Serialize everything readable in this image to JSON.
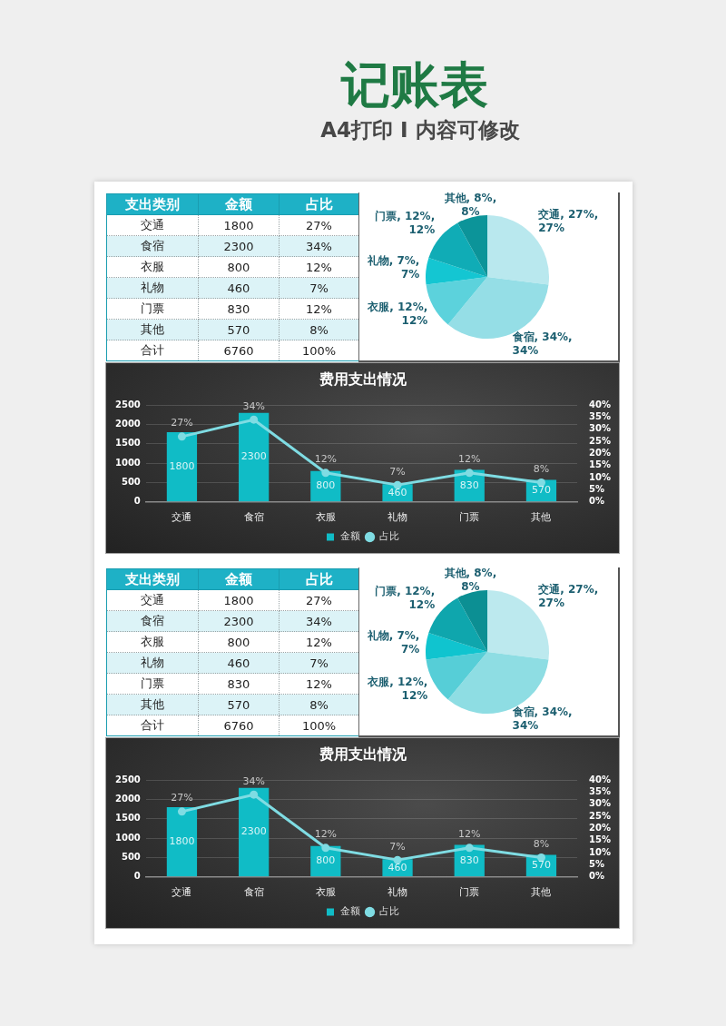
{
  "chart_data": [
    {
      "type": "other",
      "title": "记账表",
      "subtitle": "A4打印 I 内容可修改",
      "xlabel": "支出类别",
      "categories": [
        "交通",
        "食宿",
        "衣服",
        "礼物",
        "门票",
        "其他",
        "合计"
      ],
      "series": [
        {
          "name": "金额",
          "values": [
            1800,
            2300,
            800,
            460,
            830,
            570,
            6760
          ],
          "value_labels": [
            "1800",
            "2300",
            "800",
            "460",
            "830",
            "570",
            "6760"
          ],
          "colors": [
            "#ffffff",
            "#dcf3f7",
            "#ffffff",
            "#dcf3f7",
            "#ffffff",
            "#dcf3f7",
            "#ffffff"
          ]
        },
        {
          "name": "占比",
          "values": [
            27,
            34,
            12,
            7,
            12,
            8,
            100
          ],
          "value_labels": [
            "27%",
            "34%",
            "12%",
            "7%",
            "12%",
            "8%",
            "100%"
          ],
          "colors": [
            "#ffffff",
            "#dcf3f7",
            "#ffffff",
            "#dcf3f7",
            "#ffffff",
            "#dcf3f7",
            "#ffffff"
          ]
        }
      ]
    },
    {
      "type": "pie",
      "categories": [
        "交通",
        "食宿",
        "衣服",
        "礼物",
        "门票",
        "其他"
      ],
      "values": [
        27,
        34,
        12,
        7,
        12,
        8
      ],
      "colors": [
        "#b9e8ee",
        "#95dee6",
        "#5cd2dc",
        "#14c6d2",
        "#10acb6",
        "#0c9499"
      ],
      "value_labels": [
        "27%, 27%",
        "34%, 34%",
        "12%, 12%",
        "7%, 7%",
        "12%, 12%",
        "8%, 8%"
      ]
    },
    {
      "type": "bar",
      "title": "费用支出情况",
      "categories": [
        "交通",
        "食宿",
        "衣服",
        "礼物",
        "门票",
        "其他"
      ],
      "series": [
        {
          "name": "金额",
          "type": "bar",
          "color": "#10bcc6",
          "values": [
            1800,
            2300,
            800,
            460,
            830,
            570
          ],
          "value_labels": [
            "1800",
            "2300",
            "800",
            "460",
            "830",
            "570"
          ]
        },
        {
          "name": "占比",
          "type": "line",
          "axis": "y2",
          "color": "#7fdce3",
          "values": [
            27,
            34,
            12,
            7,
            12,
            8
          ],
          "value_labels": [
            "27%",
            "34%",
            "12%",
            "7%",
            "12%",
            "8%"
          ]
        }
      ],
      "ylim": [
        0,
        2500
      ],
      "yticks": [
        0,
        500,
        1000,
        1500,
        2000,
        2500
      ],
      "y2lim": [
        0,
        40
      ],
      "y2ticks": [
        {
          "value": 0,
          "label": "0%"
        },
        {
          "value": 5,
          "label": "5%"
        },
        {
          "value": 10,
          "label": "10%"
        },
        {
          "value": 15,
          "label": "15%"
        },
        {
          "value": 20,
          "label": "20%"
        },
        {
          "value": 25,
          "label": "25%"
        },
        {
          "value": 30,
          "label": "30%"
        },
        {
          "value": 35,
          "label": "35%"
        },
        {
          "value": 40,
          "label": "40%"
        }
      ],
      "grid": "y",
      "legend": "bottom",
      "marker": "circle"
    },
    {
      "type": "other",
      "xlabel": "支出类别",
      "categories": [
        "交通",
        "食宿",
        "衣服",
        "礼物",
        "门票",
        "其他",
        "合计"
      ],
      "series": [
        {
          "name": "金额",
          "values": [
            1800,
            2300,
            800,
            460,
            830,
            570,
            6760
          ],
          "value_labels": [
            "1800",
            "2300",
            "800",
            "460",
            "830",
            "570",
            "6760"
          ],
          "colors": [
            "#ffffff",
            "#dcf3f7",
            "#ffffff",
            "#dcf3f7",
            "#ffffff",
            "#dcf3f7",
            "#ffffff"
          ]
        },
        {
          "name": "占比",
          "values": [
            27,
            34,
            12,
            7,
            12,
            8,
            100
          ],
          "value_labels": [
            "27%",
            "34%",
            "12%",
            "7%",
            "12%",
            "8%",
            "100%"
          ],
          "colors": [
            "#ffffff",
            "#dcf3f7",
            "#ffffff",
            "#dcf3f7",
            "#ffffff",
            "#dcf3f7",
            "#ffffff"
          ]
        }
      ]
    },
    {
      "type": "pie",
      "categories": [
        "交通",
        "食宿",
        "衣服",
        "礼物",
        "门票",
        "其他"
      ],
      "values": [
        27,
        34,
        12,
        7,
        12,
        8
      ],
      "colors": [
        "#bce9ee",
        "#8edde3",
        "#56ced7",
        "#10c4cf",
        "#0fa6ad",
        "#0c8f93"
      ],
      "value_labels": [
        "27%, 27%",
        "34%, 34%",
        "12%, 12%",
        "7%, 7%",
        "12%, 12%",
        "8%, 8%"
      ]
    },
    {
      "type": "bar",
      "title": "费用支出情况",
      "categories": [
        "交通",
        "食宿",
        "衣服",
        "礼物",
        "门票",
        "其他"
      ],
      "series": [
        {
          "name": "金额",
          "type": "bar",
          "color": "#10bcc6",
          "values": [
            1800,
            2300,
            800,
            460,
            830,
            570
          ],
          "value_labels": [
            "1800",
            "2300",
            "800",
            "460",
            "830",
            "570"
          ]
        },
        {
          "name": "占比",
          "type": "line",
          "axis": "y2",
          "color": "#7fdce3",
          "values": [
            27,
            34,
            12,
            7,
            12,
            8
          ],
          "value_labels": [
            "27%",
            "34%",
            "12%",
            "7%",
            "12%",
            "8%"
          ]
        }
      ],
      "ylim": [
        0,
        2500
      ],
      "yticks": [
        0,
        500,
        1000,
        1500,
        2000,
        2500
      ],
      "y2lim": [
        0,
        40
      ],
      "y2ticks": [
        {
          "value": 0,
          "label": "0%"
        },
        {
          "value": 5,
          "label": "5%"
        },
        {
          "value": 10,
          "label": "10%"
        },
        {
          "value": 15,
          "label": "15%"
        },
        {
          "value": 20,
          "label": "20%"
        },
        {
          "value": 25,
          "label": "25%"
        },
        {
          "value": 30,
          "label": "30%"
        },
        {
          "value": 35,
          "label": "35%"
        },
        {
          "value": 40,
          "label": "40%"
        }
      ],
      "grid": "y",
      "legend": "bottom",
      "marker": "circle"
    }
  ]
}
